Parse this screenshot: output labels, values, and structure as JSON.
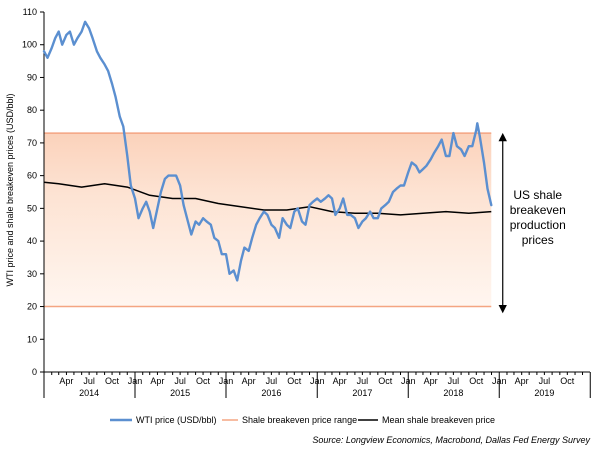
{
  "chart_data": {
    "type": "line",
    "title": "",
    "ylabel": "WTI price and shale breakeven prices (USD/bbl)",
    "xlabel": "",
    "ylim": [
      0,
      110
    ],
    "yticks": [
      0,
      10,
      20,
      30,
      40,
      50,
      60,
      70,
      80,
      90,
      100,
      110
    ],
    "xlim": [
      "2014-01-01",
      "2019-12-31"
    ],
    "x_month_labels": [
      {
        "date": "2014-04-01",
        "label": "Apr"
      },
      {
        "date": "2014-07-01",
        "label": "Jul"
      },
      {
        "date": "2014-10-01",
        "label": "Oct"
      },
      {
        "date": "2015-01-01",
        "label": "Jan"
      },
      {
        "date": "2015-04-01",
        "label": "Apr"
      },
      {
        "date": "2015-07-01",
        "label": "Jul"
      },
      {
        "date": "2015-10-01",
        "label": "Oct"
      },
      {
        "date": "2016-01-01",
        "label": "Jan"
      },
      {
        "date": "2016-04-01",
        "label": "Apr"
      },
      {
        "date": "2016-07-01",
        "label": "Jul"
      },
      {
        "date": "2016-10-01",
        "label": "Oct"
      },
      {
        "date": "2017-01-01",
        "label": "Jan"
      },
      {
        "date": "2017-04-01",
        "label": "Apr"
      },
      {
        "date": "2017-07-01",
        "label": "Jul"
      },
      {
        "date": "2017-10-01",
        "label": "Oct"
      },
      {
        "date": "2018-01-01",
        "label": "Jan"
      },
      {
        "date": "2018-04-01",
        "label": "Apr"
      },
      {
        "date": "2018-07-01",
        "label": "Jul"
      },
      {
        "date": "2018-10-01",
        "label": "Oct"
      },
      {
        "date": "2019-01-01",
        "label": "Jan"
      },
      {
        "date": "2019-04-01",
        "label": "Apr"
      },
      {
        "date": "2019-07-01",
        "label": "Jul"
      },
      {
        "date": "2019-10-01",
        "label": "Oct"
      }
    ],
    "x_year_labels": [
      {
        "date": "2014-07-01",
        "label": "2014"
      },
      {
        "date": "2015-07-01",
        "label": "2015"
      },
      {
        "date": "2016-07-01",
        "label": "2016"
      },
      {
        "date": "2017-07-01",
        "label": "2017"
      },
      {
        "date": "2018-07-01",
        "label": "2018"
      },
      {
        "date": "2019-07-01",
        "label": "2019"
      }
    ],
    "series": [
      {
        "name": "WTI price (USD/bbl)",
        "color": "#5b8fd0",
        "points": [
          [
            "2014-01-01",
            98
          ],
          [
            "2014-01-15",
            96
          ],
          [
            "2014-02-01",
            99
          ],
          [
            "2014-02-15",
            102
          ],
          [
            "2014-03-01",
            104
          ],
          [
            "2014-03-15",
            100
          ],
          [
            "2014-04-01",
            103
          ],
          [
            "2014-04-15",
            104
          ],
          [
            "2014-05-01",
            100
          ],
          [
            "2014-05-15",
            102
          ],
          [
            "2014-06-01",
            104
          ],
          [
            "2014-06-15",
            107
          ],
          [
            "2014-07-01",
            105
          ],
          [
            "2014-07-15",
            102
          ],
          [
            "2014-08-01",
            98
          ],
          [
            "2014-08-15",
            96
          ],
          [
            "2014-09-01",
            94
          ],
          [
            "2014-09-15",
            92
          ],
          [
            "2014-10-01",
            88
          ],
          [
            "2014-10-15",
            84
          ],
          [
            "2014-11-01",
            78
          ],
          [
            "2014-11-15",
            75
          ],
          [
            "2014-12-01",
            66
          ],
          [
            "2014-12-15",
            57
          ],
          [
            "2015-01-01",
            53
          ],
          [
            "2015-01-15",
            47
          ],
          [
            "2015-02-01",
            50
          ],
          [
            "2015-02-15",
            52
          ],
          [
            "2015-03-01",
            49
          ],
          [
            "2015-03-15",
            44
          ],
          [
            "2015-04-01",
            50
          ],
          [
            "2015-04-15",
            55
          ],
          [
            "2015-05-01",
            59
          ],
          [
            "2015-05-15",
            60
          ],
          [
            "2015-06-01",
            60
          ],
          [
            "2015-06-15",
            60
          ],
          [
            "2015-07-01",
            57
          ],
          [
            "2015-07-15",
            51
          ],
          [
            "2015-08-01",
            46
          ],
          [
            "2015-08-15",
            42
          ],
          [
            "2015-09-01",
            46
          ],
          [
            "2015-09-15",
            45
          ],
          [
            "2015-10-01",
            47
          ],
          [
            "2015-10-15",
            46
          ],
          [
            "2015-11-01",
            45
          ],
          [
            "2015-11-15",
            41
          ],
          [
            "2015-12-01",
            40
          ],
          [
            "2015-12-15",
            36
          ],
          [
            "2016-01-01",
            36
          ],
          [
            "2016-01-15",
            30
          ],
          [
            "2016-02-01",
            31
          ],
          [
            "2016-02-15",
            28
          ],
          [
            "2016-03-01",
            34
          ],
          [
            "2016-03-15",
            38
          ],
          [
            "2016-04-01",
            37
          ],
          [
            "2016-04-15",
            41
          ],
          [
            "2016-05-01",
            45
          ],
          [
            "2016-05-15",
            47
          ],
          [
            "2016-06-01",
            49
          ],
          [
            "2016-06-15",
            48
          ],
          [
            "2016-07-01",
            45
          ],
          [
            "2016-07-15",
            44
          ],
          [
            "2016-08-01",
            41
          ],
          [
            "2016-08-15",
            47
          ],
          [
            "2016-09-01",
            45
          ],
          [
            "2016-09-15",
            44
          ],
          [
            "2016-10-01",
            49
          ],
          [
            "2016-10-15",
            50
          ],
          [
            "2016-11-01",
            46
          ],
          [
            "2016-11-15",
            45
          ],
          [
            "2016-12-01",
            51
          ],
          [
            "2016-12-15",
            52
          ],
          [
            "2017-01-01",
            53
          ],
          [
            "2017-01-15",
            52
          ],
          [
            "2017-02-01",
            53
          ],
          [
            "2017-02-15",
            54
          ],
          [
            "2017-03-01",
            53
          ],
          [
            "2017-03-15",
            48
          ],
          [
            "2017-04-01",
            50
          ],
          [
            "2017-04-15",
            53
          ],
          [
            "2017-05-01",
            48
          ],
          [
            "2017-05-15",
            48
          ],
          [
            "2017-06-01",
            47
          ],
          [
            "2017-06-15",
            44
          ],
          [
            "2017-07-01",
            46
          ],
          [
            "2017-07-15",
            47
          ],
          [
            "2017-08-01",
            49
          ],
          [
            "2017-08-15",
            47
          ],
          [
            "2017-09-01",
            47
          ],
          [
            "2017-09-15",
            50
          ],
          [
            "2017-10-01",
            51
          ],
          [
            "2017-10-15",
            52
          ],
          [
            "2017-11-01",
            55
          ],
          [
            "2017-11-15",
            56
          ],
          [
            "2017-12-01",
            57
          ],
          [
            "2017-12-15",
            57
          ],
          [
            "2018-01-01",
            61
          ],
          [
            "2018-01-15",
            64
          ],
          [
            "2018-02-01",
            63
          ],
          [
            "2018-02-15",
            61
          ],
          [
            "2018-03-01",
            62
          ],
          [
            "2018-03-15",
            63
          ],
          [
            "2018-04-01",
            65
          ],
          [
            "2018-04-15",
            67
          ],
          [
            "2018-05-01",
            69
          ],
          [
            "2018-05-15",
            71
          ],
          [
            "2018-06-01",
            66
          ],
          [
            "2018-06-15",
            66
          ],
          [
            "2018-07-01",
            73
          ],
          [
            "2018-07-15",
            69
          ],
          [
            "2018-08-01",
            68
          ],
          [
            "2018-08-15",
            66
          ],
          [
            "2018-09-01",
            69
          ],
          [
            "2018-09-15",
            69
          ],
          [
            "2018-10-01",
            74
          ],
          [
            "2018-10-05",
            76
          ],
          [
            "2018-10-15",
            72
          ],
          [
            "2018-11-01",
            64
          ],
          [
            "2018-11-15",
            56
          ],
          [
            "2018-11-30",
            51
          ]
        ]
      },
      {
        "name": "Shale breakeven price range",
        "color": "#f4a582",
        "low": 20,
        "high": 73,
        "x_start": "2014-01-01",
        "x_end": "2018-11-30"
      },
      {
        "name": "Mean shale breakeven price",
        "color": "#000000",
        "points": [
          [
            "2014-01-01",
            58
          ],
          [
            "2014-03-01",
            57.5
          ],
          [
            "2014-06-01",
            56.5
          ],
          [
            "2014-09-01",
            57.5
          ],
          [
            "2014-12-01",
            56.5
          ],
          [
            "2015-03-01",
            54
          ],
          [
            "2015-06-01",
            53
          ],
          [
            "2015-09-01",
            53
          ],
          [
            "2015-12-01",
            51.5
          ],
          [
            "2016-03-01",
            50.5
          ],
          [
            "2016-06-01",
            49.5
          ],
          [
            "2016-09-01",
            49.5
          ],
          [
            "2016-12-01",
            50.5
          ],
          [
            "2017-03-01",
            49
          ],
          [
            "2017-06-01",
            48.5
          ],
          [
            "2017-09-01",
            48.5
          ],
          [
            "2017-12-01",
            48
          ],
          [
            "2018-03-01",
            48.5
          ],
          [
            "2018-06-01",
            49
          ],
          [
            "2018-09-01",
            48.5
          ],
          [
            "2018-11-30",
            49
          ]
        ]
      }
    ],
    "annotation": {
      "lines": [
        "US shale",
        "breakeven",
        "production",
        "prices"
      ],
      "arrow_from": 73,
      "arrow_to": 18,
      "x": "2019-01-15"
    },
    "legend_placement": "bottom",
    "grid": false
  },
  "source_text": "Source: Longview Economics, Macrobond, Dallas Fed Energy Survey"
}
